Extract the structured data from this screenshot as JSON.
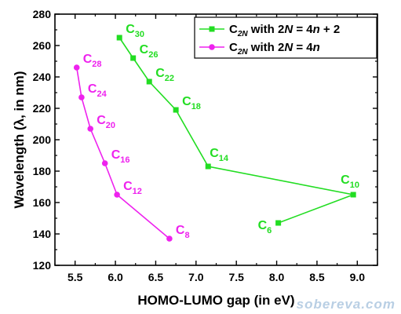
{
  "chart_data": {
    "type": "line",
    "xlabel": "HOMO-LUMO gap (in eV)",
    "ylabel": "Wavelength (λ, in nm)",
    "xlim": [
      5.25,
      9.25
    ],
    "ylim": [
      120,
      280
    ],
    "xticks": [
      "5.5",
      "6.0",
      "6.5",
      "7.0",
      "7.5",
      "8.0",
      "8.5",
      "9.0"
    ],
    "yticks": [
      "120",
      "140",
      "160",
      "180",
      "200",
      "220",
      "240",
      "260",
      "280"
    ],
    "grid": false,
    "legend_position": "top-right",
    "series": [
      {
        "name": "C2N with 2N = 4n + 2",
        "color": "#22dd22",
        "marker": "square",
        "points": [
          {
            "label": "C30",
            "x": 6.05,
            "y": 265
          },
          {
            "label": "C26",
            "x": 6.22,
            "y": 252
          },
          {
            "label": "C22",
            "x": 6.42,
            "y": 237
          },
          {
            "label": "C18",
            "x": 6.75,
            "y": 219
          },
          {
            "label": "C14",
            "x": 7.15,
            "y": 183
          },
          {
            "label": "C10",
            "x": 8.95,
            "y": 165
          },
          {
            "label": "C6",
            "x": 8.02,
            "y": 147
          }
        ]
      },
      {
        "name": "C2N with 2N = 4n",
        "color": "#ee22ee",
        "marker": "circle",
        "points": [
          {
            "label": "C28",
            "x": 5.52,
            "y": 246
          },
          {
            "label": "C24",
            "x": 5.58,
            "y": 227
          },
          {
            "label": "C20",
            "x": 5.69,
            "y": 207
          },
          {
            "label": "C16",
            "x": 5.87,
            "y": 185
          },
          {
            "label": "C12",
            "x": 6.02,
            "y": 165
          },
          {
            "label": "C8",
            "x": 6.67,
            "y": 137
          }
        ]
      }
    ],
    "legend": [
      {
        "base": "C",
        "sub": "2N",
        "rest": " with 2",
        "italic": "N",
        "tail": " = 4",
        "italic2": "n",
        "end": " + 2"
      },
      {
        "base": "C",
        "sub": "2N",
        "rest": " with 2",
        "italic": "N",
        "tail": " = 4",
        "italic2": "n",
        "end": ""
      }
    ]
  },
  "watermark": "sobereva.com"
}
